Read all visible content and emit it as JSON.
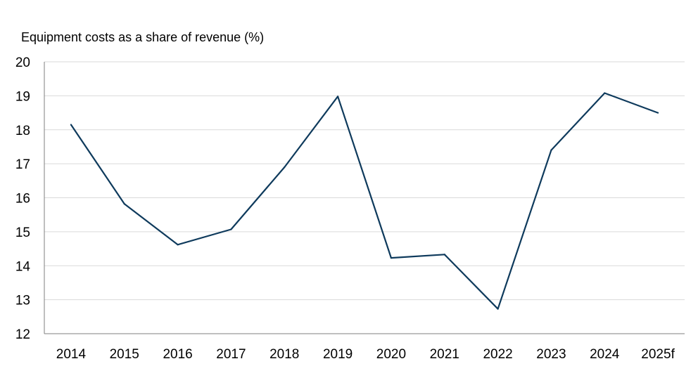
{
  "chart_data": {
    "type": "line",
    "title": "",
    "ylabel": "Equipment costs as a share of revenue (%)",
    "xlabel": "",
    "categories": [
      "2014",
      "2015",
      "2016",
      "2017",
      "2018",
      "2019",
      "2020",
      "2021",
      "2022",
      "2023",
      "2024",
      "2025f"
    ],
    "series": [
      {
        "values": [
          18.15,
          15.82,
          14.62,
          15.07,
          16.9,
          18.98,
          14.23,
          14.33,
          12.73,
          17.4,
          19.08,
          18.5
        ]
      }
    ],
    "ylim": [
      12,
      20
    ],
    "yticks": [
      "12",
      "13",
      "14",
      "15",
      "16",
      "17",
      "18",
      "19",
      "20"
    ],
    "grid": true,
    "legend": "none",
    "colors": {
      "line": "#0e3a5c",
      "grid": "#d9d9d9",
      "axis": "#7f7f7f"
    }
  }
}
